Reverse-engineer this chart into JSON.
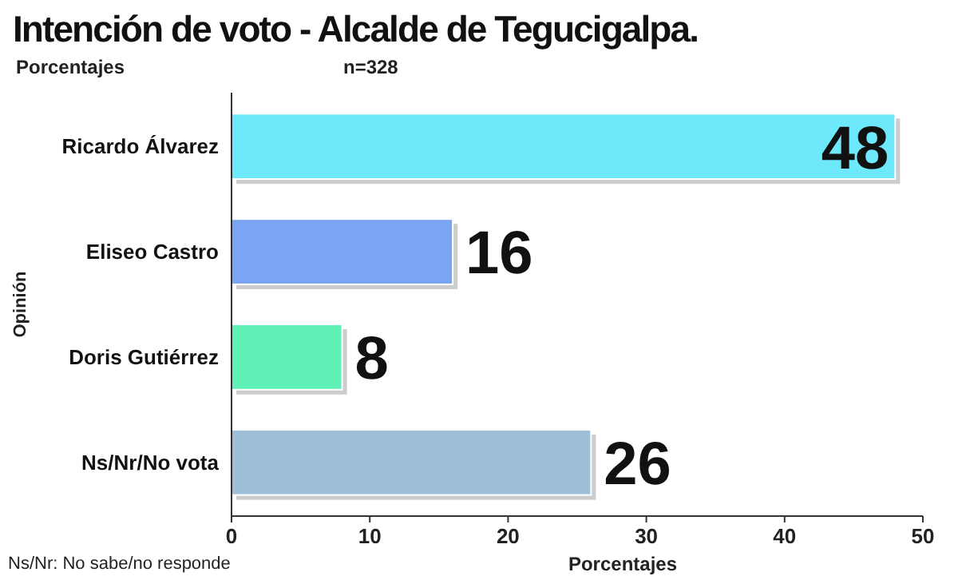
{
  "chart_data": {
    "type": "bar",
    "orientation": "horizontal",
    "title": "Intención de voto - Alcalde de Tegucigalpa.",
    "subtitle": "Porcentajes",
    "annotations": [
      "n=328",
      "Ns/Nr: No sabe/no responde"
    ],
    "xlabel": "Porcentajes",
    "ylabel": "Opinión",
    "categories": [
      "Ricardo Álvarez",
      "Eliseo Castro",
      "Doris Gutiérrez",
      "Ns/Nr/No vota"
    ],
    "values": [
      48,
      16,
      8,
      26
    ],
    "colors": [
      "#6ee8fb",
      "#7aa5f5",
      "#5ff0b5",
      "#9dc0d8"
    ],
    "xlim": [
      0,
      50
    ],
    "xticks": [
      0,
      10,
      20,
      30,
      40,
      50
    ],
    "data_labels": true,
    "grid": false
  }
}
